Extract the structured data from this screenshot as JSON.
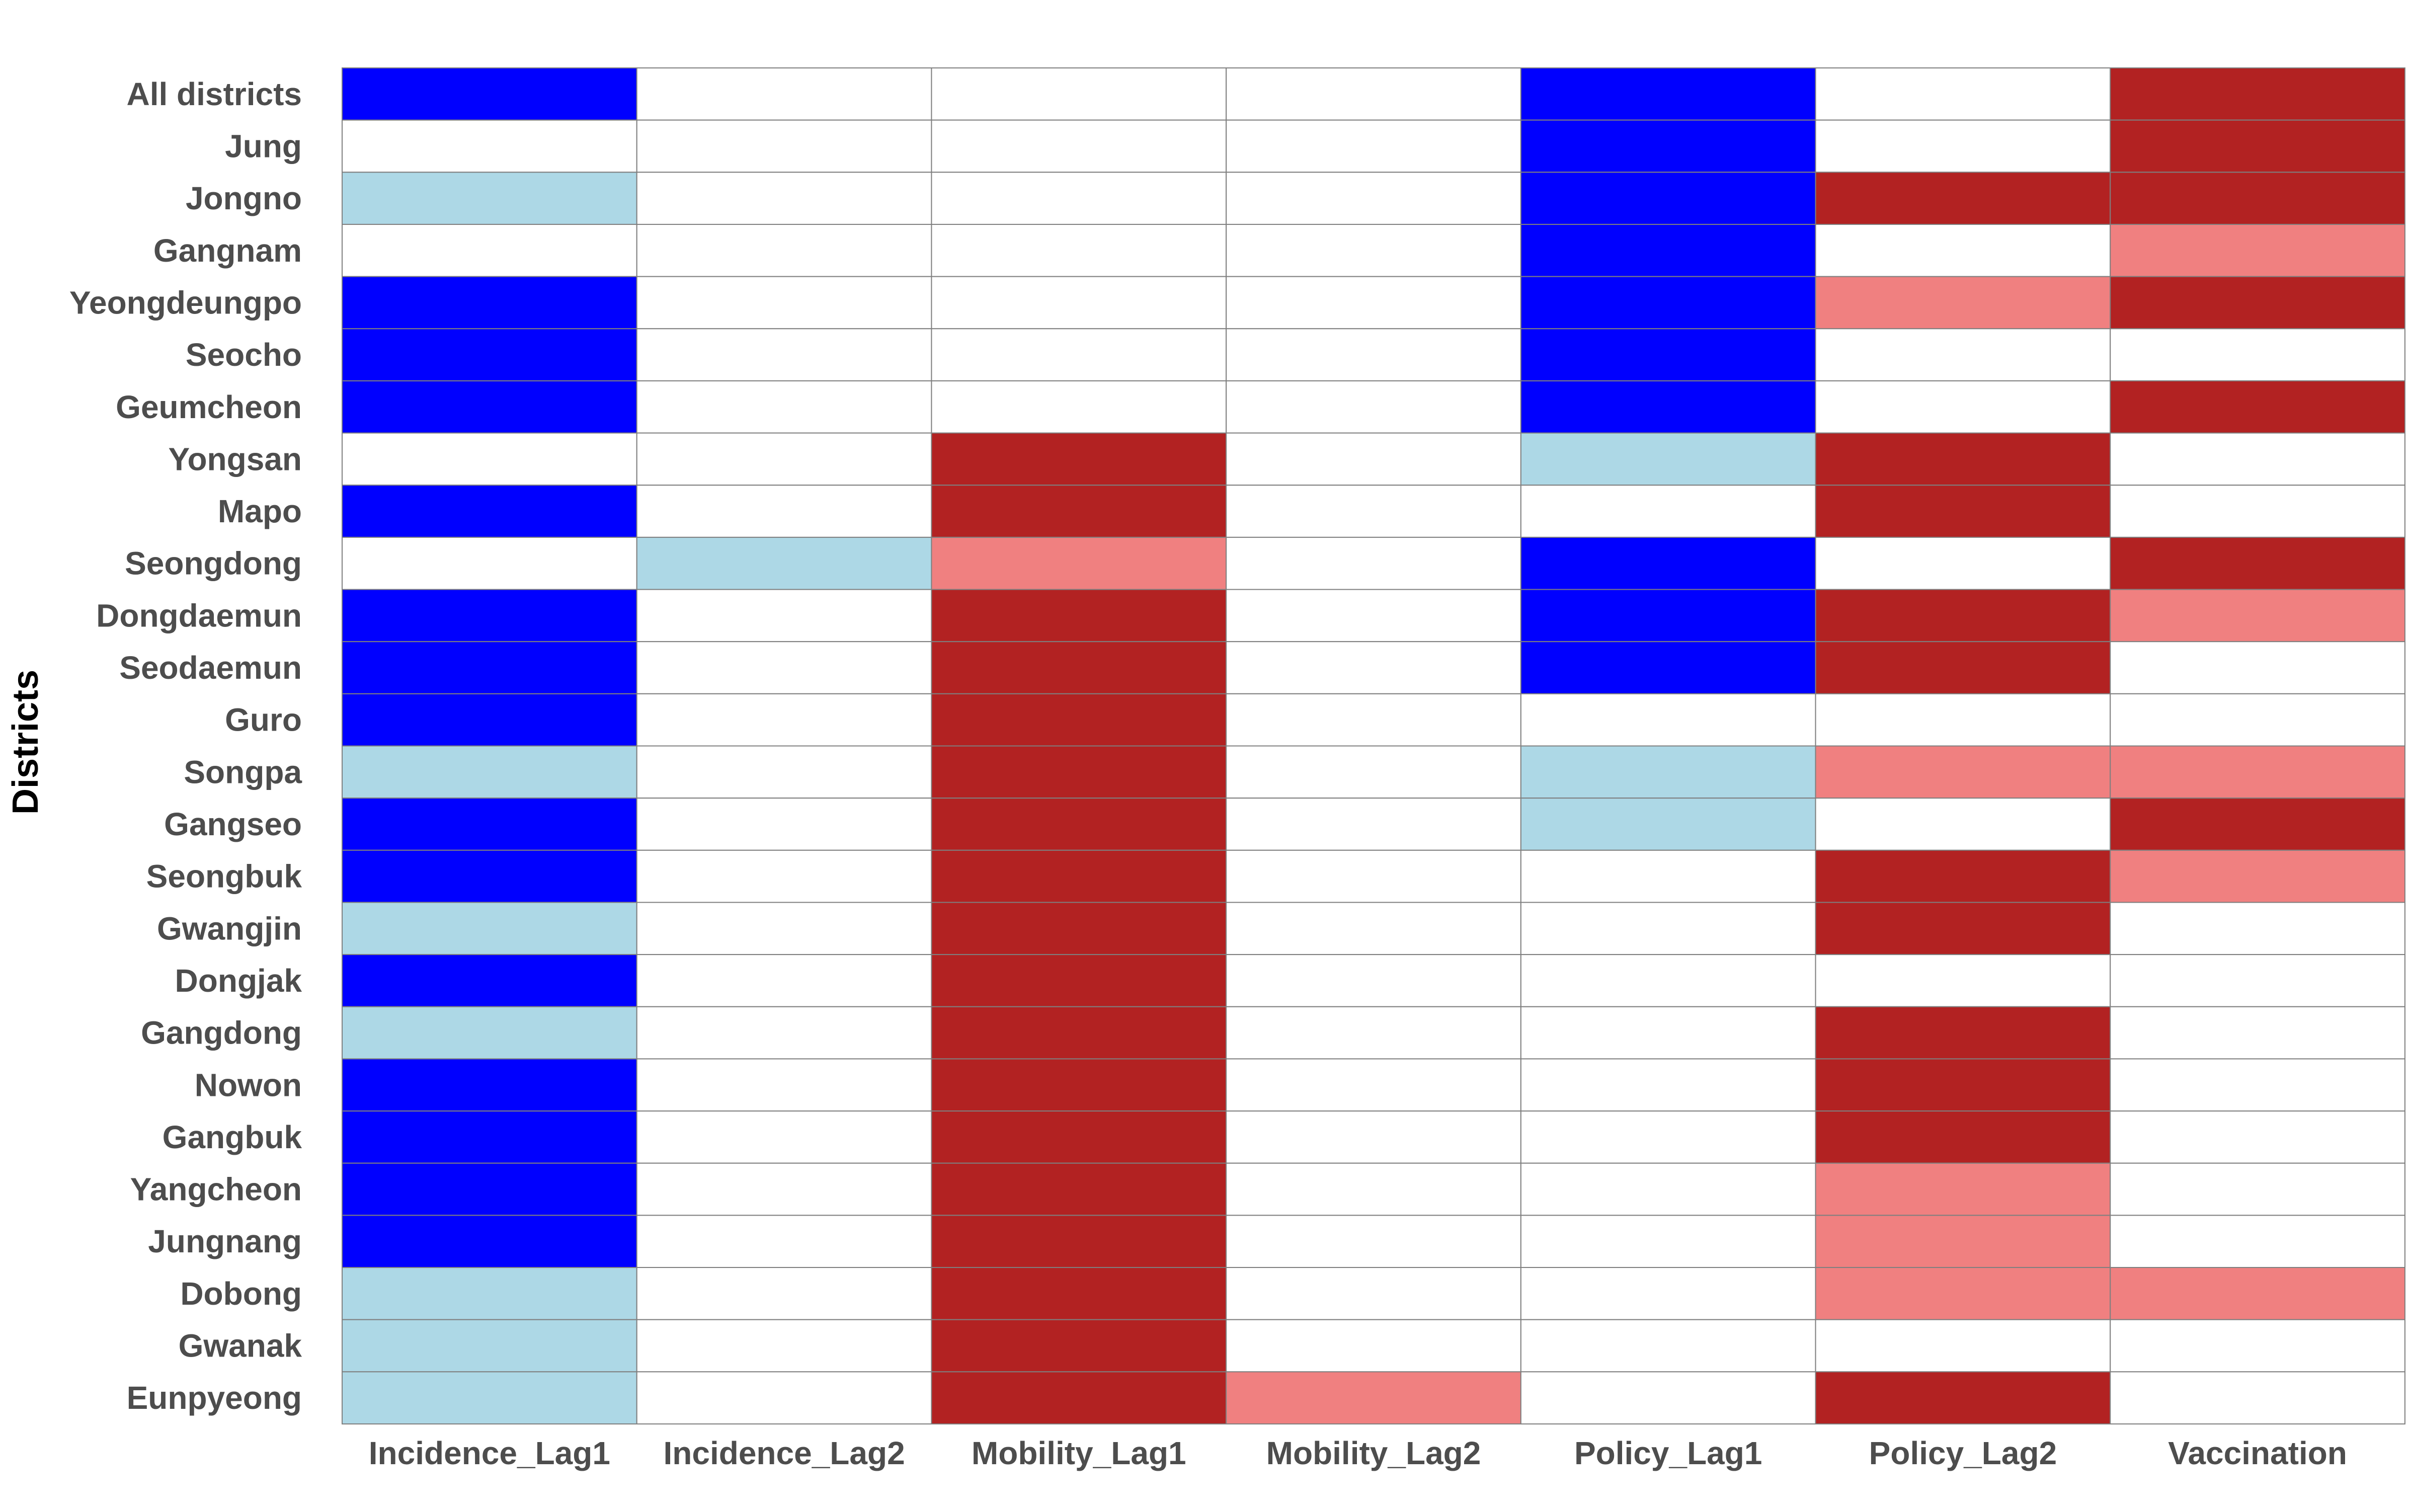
{
  "chart_data": {
    "type": "heatmap",
    "title": "",
    "xlabel": "",
    "ylabel": "Districts",
    "legend": "none",
    "grid": true,
    "columns": [
      "Incidence_Lag1",
      "Incidence_Lag2",
      "Mobility_Lag1",
      "Mobility_Lag2",
      "Policy_Lag1",
      "Policy_Lag2",
      "Vaccination"
    ],
    "rows": [
      "All districts",
      "Jung",
      "Jongno",
      "Gangnam",
      "Yeongdeungpo",
      "Seocho",
      "Geumcheon",
      "Yongsan",
      "Mapo",
      "Seongdong",
      "Dongdaemun",
      "Seodaemun",
      "Guro",
      "Songpa",
      "Gangseo",
      "Seongbuk",
      "Gwangjin",
      "Dongjak",
      "Gangdong",
      "Nowon",
      "Gangbuk",
      "Yangcheon",
      "Jungnang",
      "Dobong",
      "Gwanak",
      "Eunpyeong"
    ],
    "color_scale": {
      "-2": "#0000ff",
      "-1": "#add8e6",
      "0": "#ffffff",
      "1": "#f08080",
      "2": "#b22222"
    },
    "values": [
      [
        -2,
        0,
        0,
        0,
        -2,
        0,
        2
      ],
      [
        0,
        0,
        0,
        0,
        -2,
        0,
        2
      ],
      [
        -1,
        0,
        0,
        0,
        -2,
        2,
        2
      ],
      [
        0,
        0,
        0,
        0,
        -2,
        0,
        1
      ],
      [
        -2,
        0,
        0,
        0,
        -2,
        1,
        2
      ],
      [
        -2,
        0,
        0,
        0,
        -2,
        0,
        0
      ],
      [
        -2,
        0,
        0,
        0,
        -2,
        0,
        2
      ],
      [
        0,
        0,
        2,
        0,
        -1,
        2,
        0
      ],
      [
        -2,
        0,
        2,
        0,
        0,
        2,
        0
      ],
      [
        0,
        -1,
        1,
        0,
        -2,
        0,
        2
      ],
      [
        -2,
        0,
        2,
        0,
        -2,
        2,
        1
      ],
      [
        -2,
        0,
        2,
        0,
        -2,
        2,
        0
      ],
      [
        -2,
        0,
        2,
        0,
        0,
        0,
        0
      ],
      [
        -1,
        0,
        2,
        0,
        -1,
        1,
        1
      ],
      [
        -2,
        0,
        2,
        0,
        -1,
        0,
        2
      ],
      [
        -2,
        0,
        2,
        0,
        0,
        2,
        1
      ],
      [
        -1,
        0,
        2,
        0,
        0,
        2,
        0
      ],
      [
        -2,
        0,
        2,
        0,
        0,
        0,
        0
      ],
      [
        -1,
        0,
        2,
        0,
        0,
        2,
        0
      ],
      [
        -2,
        0,
        2,
        0,
        0,
        2,
        0
      ],
      [
        -2,
        0,
        2,
        0,
        0,
        2,
        0
      ],
      [
        -2,
        0,
        2,
        0,
        0,
        1,
        0
      ],
      [
        -2,
        0,
        2,
        0,
        0,
        1,
        0
      ],
      [
        -1,
        0,
        2,
        0,
        0,
        1,
        1
      ],
      [
        -1,
        0,
        2,
        0,
        0,
        0,
        0
      ],
      [
        -1,
        0,
        2,
        1,
        0,
        2,
        0
      ]
    ]
  }
}
